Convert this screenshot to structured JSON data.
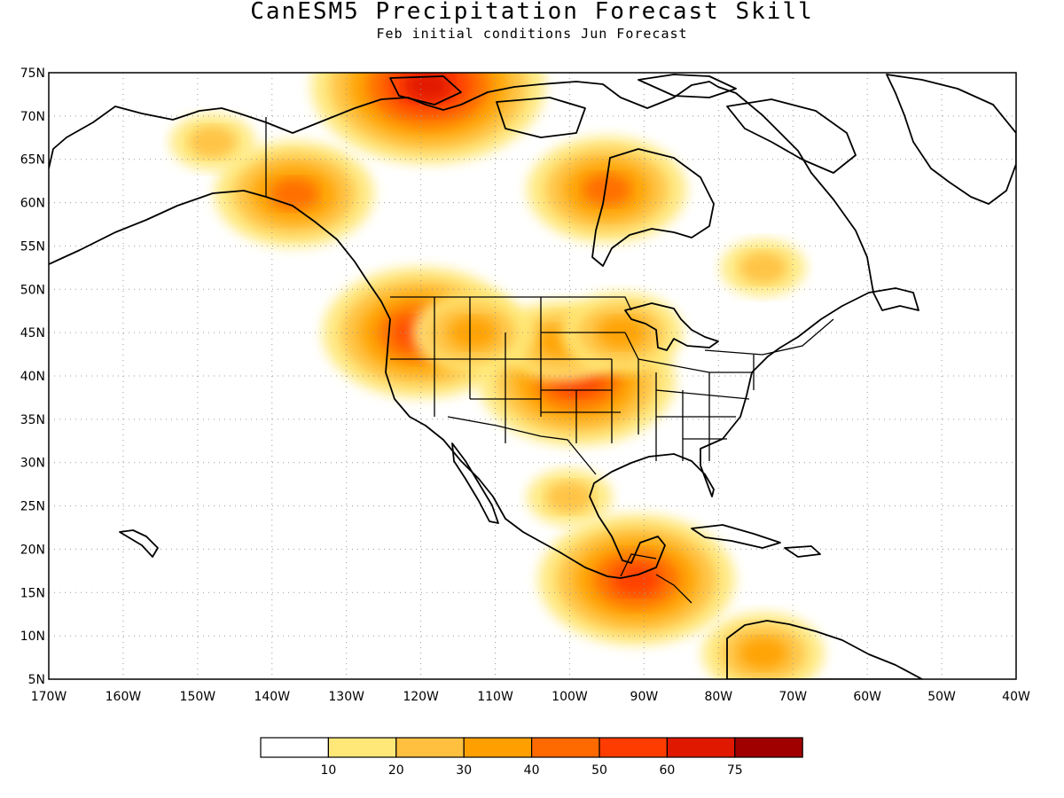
{
  "header": {
    "title": "CanESM5 Precipitation Forecast Skill",
    "subtitle": "Feb initial conditions  Jun Forecast"
  },
  "map": {
    "lon_range": [
      -170,
      -40
    ],
    "lat_range": [
      5,
      75
    ],
    "lat_ticks": [
      "75N",
      "70N",
      "65N",
      "60N",
      "55N",
      "50N",
      "45N",
      "40N",
      "35N",
      "30N",
      "25N",
      "20N",
      "15N",
      "10N",
      "5N"
    ],
    "lon_ticks": [
      "170W",
      "160W",
      "150W",
      "140W",
      "130W",
      "120W",
      "110W",
      "100W",
      "90W",
      "80W",
      "70W",
      "60W",
      "50W",
      "40W"
    ],
    "grid": true,
    "skill_regions": [
      {
        "lon": -120,
        "lat": 45,
        "level": 5
      },
      {
        "lon": -99,
        "lat": 39.5,
        "level": 5
      },
      {
        "lon": -91,
        "lat": 16.5,
        "level": 5
      },
      {
        "lon": -119,
        "lat": 73.5,
        "level": 6
      },
      {
        "lon": -137,
        "lat": 61,
        "level": 4
      },
      {
        "lon": -95,
        "lat": 61.5,
        "level": 4
      },
      {
        "lon": -101,
        "lat": 44,
        "level": 3
      },
      {
        "lon": -93,
        "lat": 45,
        "level": 3
      },
      {
        "lon": -74,
        "lat": 8,
        "level": 3
      },
      {
        "lon": -113,
        "lat": 45,
        "level": 3
      },
      {
        "lon": -74,
        "lat": 52.5,
        "level": 2
      },
      {
        "lon": -148,
        "lat": 67,
        "level": 2
      },
      {
        "lon": -100,
        "lat": 26,
        "level": 2
      }
    ]
  },
  "colorbar": {
    "colors": [
      "#ffffff",
      "#ffe878",
      "#ffc040",
      "#ffa000",
      "#ff6a00",
      "#ff3c00",
      "#e01800",
      "#a00000"
    ],
    "labels": [
      "10",
      "20",
      "30",
      "40",
      "50",
      "60",
      "75"
    ]
  }
}
